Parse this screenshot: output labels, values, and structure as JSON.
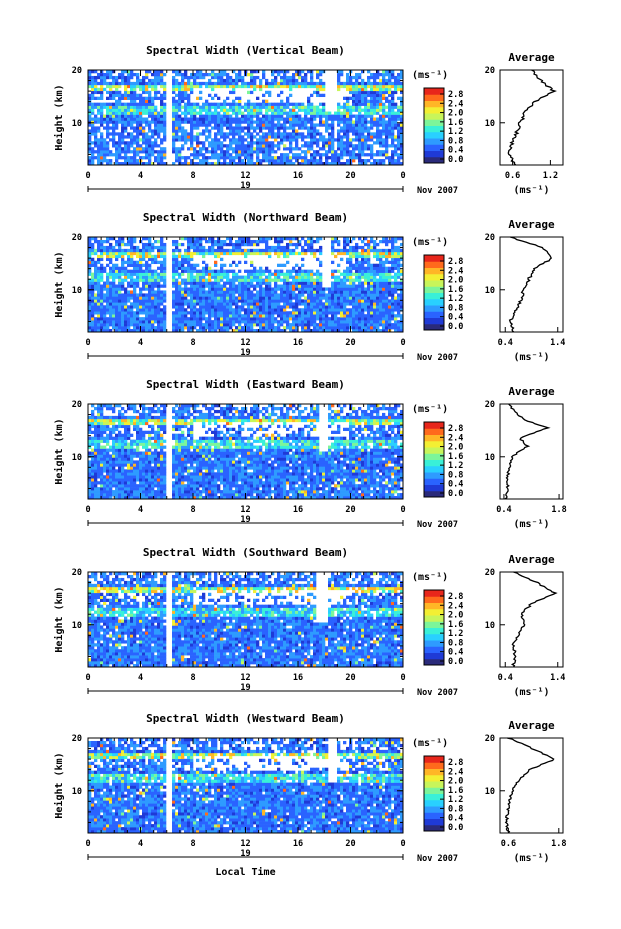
{
  "figure": {
    "xlabel": "Local Time",
    "date_label": "Nov 2007",
    "colorbar_unit": "(ms⁻¹)",
    "avg_title": "Average",
    "avg_xlabel": "(ms⁻¹)",
    "colorbar_ticks": [
      "2.8",
      "2.4",
      "2.0",
      "1.6",
      "1.2",
      "0.8",
      "0.4",
      "0.0"
    ],
    "colormap": [
      "#2a2a7a",
      "#1f3ad6",
      "#2a63ff",
      "#2e9bff",
      "#29d0ff",
      "#39f0d8",
      "#7cf59a",
      "#c8f55a",
      "#f3ef33",
      "#ffb626",
      "#ff6a1c",
      "#e8261b"
    ]
  },
  "chart_data": [
    {
      "type": "heatmap",
      "title": "Spectral Width (Vertical Beam)",
      "ylabel": "Height (km)",
      "xlabel": "",
      "x_ticks": [
        "0",
        "4",
        "8",
        "12",
        "16",
        "20",
        "0"
      ],
      "y_ticks": [
        "20",
        "10"
      ],
      "day_label": "19",
      "xlim": [
        0,
        24
      ],
      "ylim": [
        2,
        20
      ],
      "clim": [
        0.0,
        3.0
      ],
      "gap_start": 6.0,
      "dropout": [
        18.0,
        18.9,
        12.0
      ],
      "avg": {
        "x_ticks": [
          "0.6",
          "1.2"
        ],
        "xlim": [
          0.4,
          1.4
        ],
        "profile": [
          [
            0.62,
            2
          ],
          [
            0.55,
            4
          ],
          [
            0.58,
            6
          ],
          [
            0.66,
            8
          ],
          [
            0.72,
            10
          ],
          [
            0.8,
            12
          ],
          [
            0.95,
            14
          ],
          [
            1.25,
            16
          ],
          [
            1.05,
            18
          ],
          [
            0.9,
            20
          ]
        ]
      }
    },
    {
      "type": "heatmap",
      "title": "Spectral Width (Northward Beam)",
      "ylabel": "Height (km)",
      "xlabel": "",
      "x_ticks": [
        "0",
        "4",
        "8",
        "12",
        "16",
        "20",
        "0"
      ],
      "y_ticks": [
        "20",
        "10"
      ],
      "day_label": "19",
      "xlim": [
        0,
        24
      ],
      "ylim": [
        2,
        20
      ],
      "clim": [
        0.0,
        3.0
      ],
      "gap_start": 6.0,
      "dropout": [
        17.8,
        18.6,
        10.4
      ],
      "avg": {
        "x_ticks": [
          "0.4",
          "1.4"
        ],
        "xlim": [
          0.3,
          1.5
        ],
        "profile": [
          [
            0.55,
            2
          ],
          [
            0.5,
            4
          ],
          [
            0.6,
            6
          ],
          [
            0.7,
            8
          ],
          [
            0.75,
            10
          ],
          [
            0.85,
            12
          ],
          [
            0.95,
            14
          ],
          [
            1.3,
            16
          ],
          [
            1.1,
            18
          ],
          [
            0.5,
            20
          ]
        ]
      }
    },
    {
      "type": "heatmap",
      "title": "Spectral Width (Eastward Beam)",
      "ylabel": "Height (km)",
      "xlabel": "",
      "x_ticks": [
        "0",
        "4",
        "8",
        "12",
        "16",
        "20",
        "0"
      ],
      "y_ticks": [
        "20",
        "10"
      ],
      "day_label": "19",
      "xlim": [
        0,
        24
      ],
      "ylim": [
        2,
        20
      ],
      "clim": [
        0.0,
        3.0
      ],
      "gap_start": 6.0,
      "dropout": [
        17.6,
        18.4,
        11.2
      ],
      "avg": {
        "x_ticks": [
          "0.4",
          "1.8"
        ],
        "xlim": [
          0.3,
          1.9
        ],
        "profile": [
          [
            0.45,
            2
          ],
          [
            0.5,
            4
          ],
          [
            0.48,
            6
          ],
          [
            0.55,
            8
          ],
          [
            0.6,
            10
          ],
          [
            1.0,
            12
          ],
          [
            0.8,
            13.5
          ],
          [
            1.5,
            15.5
          ],
          [
            0.9,
            17
          ],
          [
            0.5,
            20
          ]
        ]
      }
    },
    {
      "type": "heatmap",
      "title": "Spectral Width (Southward Beam)",
      "ylabel": "Height (km)",
      "xlabel": "",
      "x_ticks": [
        "0",
        "4",
        "8",
        "12",
        "16",
        "20",
        "0"
      ],
      "y_ticks": [
        "20",
        "10"
      ],
      "day_label": "19",
      "xlim": [
        0,
        24
      ],
      "ylim": [
        2,
        20
      ],
      "clim": [
        0.0,
        3.0
      ],
      "gap_start": 6.0,
      "dropout": [
        17.3,
        18.2,
        10.4
      ],
      "avg": {
        "x_ticks": [
          "0.4",
          "1.4"
        ],
        "xlim": [
          0.3,
          1.5
        ],
        "profile": [
          [
            0.55,
            2
          ],
          [
            0.6,
            4
          ],
          [
            0.55,
            6
          ],
          [
            0.65,
            8
          ],
          [
            0.75,
            10
          ],
          [
            0.7,
            12
          ],
          [
            0.9,
            14
          ],
          [
            1.35,
            16
          ],
          [
            1.0,
            18
          ],
          [
            0.55,
            20
          ]
        ]
      }
    },
    {
      "type": "heatmap",
      "title": "Spectral Width (Westward Beam)",
      "ylabel": "Height (km)",
      "xlabel": "Local Time",
      "x_ticks": [
        "0",
        "4",
        "8",
        "12",
        "16",
        "20",
        "0"
      ],
      "y_ticks": [
        "20",
        "10"
      ],
      "day_label": "19",
      "xlim": [
        0,
        24
      ],
      "ylim": [
        2,
        20
      ],
      "clim": [
        0.0,
        3.0
      ],
      "gap_start": 6.0,
      "dropout": [
        18.2,
        19.0,
        11.6
      ],
      "avg": {
        "x_ticks": [
          "0.6",
          "1.8"
        ],
        "xlim": [
          0.4,
          1.9
        ],
        "profile": [
          [
            0.6,
            2
          ],
          [
            0.55,
            4
          ],
          [
            0.58,
            6
          ],
          [
            0.62,
            8
          ],
          [
            0.7,
            10
          ],
          [
            0.85,
            12
          ],
          [
            1.1,
            14
          ],
          [
            1.7,
            16
          ],
          [
            1.3,
            17.5
          ],
          [
            0.9,
            19
          ],
          [
            0.6,
            20
          ]
        ]
      }
    }
  ]
}
